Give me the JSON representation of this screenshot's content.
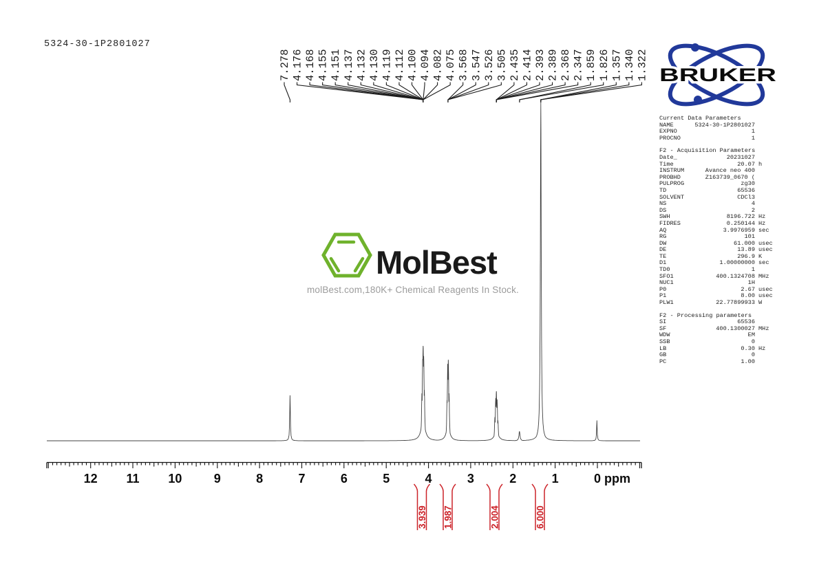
{
  "title": "5324-30-1P2801027",
  "watermark": {
    "brand": "MolBest",
    "tagline": "molBest.com,180K+ Chemical Reagents In Stock.",
    "green": "#6fb22c",
    "text_color": "#1a1a1a"
  },
  "bruker": {
    "label": "BRUKER",
    "blue": "#21399a"
  },
  "chart_data": {
    "type": "line",
    "title": "1H NMR spectrum 5324-30-1P2801027",
    "xlabel": "ppm",
    "x_axis": {
      "min": -1.05,
      "max": 13.05,
      "major_ticks": [
        12,
        11,
        10,
        9,
        8,
        7,
        6,
        5,
        4,
        3,
        2,
        1,
        0
      ],
      "minor_step": 0.1,
      "unit_label": "ppm"
    },
    "trace_color": "#404040",
    "accent_red": "#cc2228",
    "peak_labels": [
      "7.278",
      "4.176",
      "4.168",
      "4.155",
      "4.151",
      "4.137",
      "4.132",
      "4.130",
      "4.119",
      "4.112",
      "4.100",
      "4.094",
      "4.082",
      "4.075",
      "3.568",
      "3.547",
      "3.526",
      "3.505",
      "2.435",
      "2.414",
      "2.393",
      "2.389",
      "2.368",
      "2.347",
      "1.859",
      "1.826",
      "1.357",
      "1.340",
      "1.322"
    ],
    "peak_label_groups": [
      {
        "ppm": 7.278,
        "count": 1
      },
      {
        "ppm": 4.126,
        "count": 13
      },
      {
        "ppm": 3.537,
        "count": 4
      },
      {
        "ppm": 2.391,
        "count": 6
      },
      {
        "ppm": 1.843,
        "count": 2
      },
      {
        "ppm": 1.34,
        "count": 3
      }
    ],
    "peaks": [
      {
        "ppm": 7.278,
        "h": 0.134,
        "w": 1.1
      },
      {
        "ppm": 4.155,
        "h": 0.14,
        "w": 1.4
      },
      {
        "ppm": 4.137,
        "h": 0.24,
        "w": 1.5
      },
      {
        "ppm": 4.126,
        "h": 0.28,
        "w": 1.7
      },
      {
        "ppm": 4.113,
        "h": 0.25,
        "w": 1.5
      },
      {
        "ppm": 4.097,
        "h": 0.15,
        "w": 1.4
      },
      {
        "ppm": 4.126,
        "h": 0.06,
        "w": 7.0
      },
      {
        "ppm": 3.56,
        "h": 0.12,
        "w": 1.3
      },
      {
        "ppm": 3.544,
        "h": 0.227,
        "w": 1.5
      },
      {
        "ppm": 3.53,
        "h": 0.239,
        "w": 1.5
      },
      {
        "ppm": 3.512,
        "h": 0.14,
        "w": 1.3
      },
      {
        "ppm": 3.537,
        "h": 0.045,
        "w": 6.0
      },
      {
        "ppm": 2.427,
        "h": 0.07,
        "w": 1.3
      },
      {
        "ppm": 2.408,
        "h": 0.126,
        "w": 1.4
      },
      {
        "ppm": 2.392,
        "h": 0.146,
        "w": 1.5
      },
      {
        "ppm": 2.374,
        "h": 0.122,
        "w": 1.4
      },
      {
        "ppm": 2.355,
        "h": 0.06,
        "w": 1.3
      },
      {
        "ppm": 2.391,
        "h": 0.028,
        "w": 7.0
      },
      {
        "ppm": 1.845,
        "h": 0.028,
        "w": 1.8
      },
      {
        "ppm": 1.352,
        "h": 0.24,
        "w": 1.2
      },
      {
        "ppm": 1.34,
        "h": 1.0,
        "w": 1.5
      },
      {
        "ppm": 1.327,
        "h": 0.22,
        "w": 1.2
      },
      {
        "ppm": 1.34,
        "h": 0.057,
        "w": 7.0
      },
      {
        "ppm": 0.012,
        "h": 0.06,
        "w": 1.0
      }
    ],
    "integrals": [
      {
        "value": "3.939",
        "ppm": 4.156
      },
      {
        "value": "1.987",
        "ppm": 3.545
      },
      {
        "value": "2.004",
        "ppm": 2.436
      },
      {
        "value": "6.000",
        "ppm": 1.361
      }
    ]
  },
  "parameters": {
    "sections": [
      {
        "header": "Current Data Parameters",
        "rows": [
          [
            "NAME",
            "5324-30-1P2801027",
            ""
          ],
          [
            "EXPNO",
            "1",
            ""
          ],
          [
            "PROCNO",
            "1",
            ""
          ]
        ]
      },
      {
        "header": "F2 - Acquisition Parameters",
        "rows": [
          [
            "Date_",
            "20231027",
            ""
          ],
          [
            "Time",
            "20.07",
            "h"
          ],
          [
            "INSTRUM",
            "Avance neo 400",
            ""
          ],
          [
            "PROBHD",
            "Z163739_0670 (",
            ""
          ],
          [
            "PULPROG",
            "zg30",
            ""
          ],
          [
            "TD",
            "65536",
            ""
          ],
          [
            "SOLVENT",
            "CDCl3",
            ""
          ],
          [
            "NS",
            "4",
            ""
          ],
          [
            "DS",
            "2",
            ""
          ],
          [
            "SWH",
            "8196.722",
            "Hz"
          ],
          [
            "FIDRES",
            "0.250144",
            "Hz"
          ],
          [
            "AQ",
            "3.9976959",
            "sec"
          ],
          [
            "RG",
            "101",
            ""
          ],
          [
            "DW",
            "61.000",
            "usec"
          ],
          [
            "DE",
            "13.89",
            "usec"
          ],
          [
            "TE",
            "296.9",
            "K"
          ],
          [
            "D1",
            "1.00000000",
            "sec"
          ],
          [
            "TD0",
            "1",
            ""
          ],
          [
            "SFO1",
            "400.1324708",
            "MHz"
          ],
          [
            "NUC1",
            "1H",
            ""
          ],
          [
            "P0",
            "2.67",
            "usec"
          ],
          [
            "P1",
            "8.00",
            "usec"
          ],
          [
            "PLW1",
            "22.77899933",
            "W"
          ]
        ]
      },
      {
        "header": "F2 - Processing parameters",
        "rows": [
          [
            "SI",
            "65536",
            ""
          ],
          [
            "SF",
            "400.1300027",
            "MHz"
          ],
          [
            "WDW",
            "EM",
            ""
          ],
          [
            "SSB",
            "0",
            ""
          ],
          [
            "LB",
            "0.30",
            "Hz"
          ],
          [
            "GB",
            "0",
            ""
          ],
          [
            "PC",
            "1.00",
            ""
          ]
        ]
      }
    ]
  }
}
